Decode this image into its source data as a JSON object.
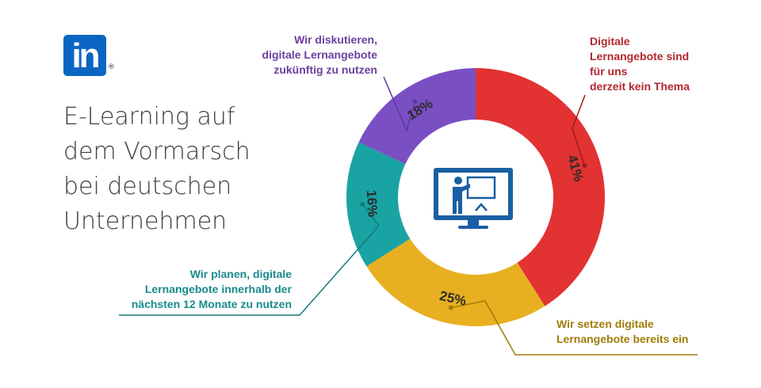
{
  "brand": {
    "logo_text": "in",
    "registered_mark": "®",
    "logo_color": "#0a66c2"
  },
  "title_lines": [
    "E-Learning auf",
    "dem Vormarsch",
    "bei deutschen",
    "Unternehmen"
  ],
  "annotations": {
    "purple": [
      "Wir diskutieren,",
      "digitale Lernangebote",
      "zukünftig zu nutzen"
    ],
    "red": [
      "Digitale",
      "Lernangebote sind",
      "für uns",
      "derzeit kein Thema"
    ],
    "teal": [
      "Wir planen, digitale",
      "Lernangebote innerhalb der",
      "nächsten 12 Monate zu nutzen"
    ],
    "yellow": [
      "Wir setzen digitale",
      "Lernangebote bereits ein"
    ]
  },
  "center_icon": "presentation-monitor-icon",
  "chart_data": {
    "type": "pie",
    "donut": true,
    "title": "E-Learning auf dem Vormarsch bei deutschen Unternehmen",
    "slices": [
      {
        "label": "Digitale Lernangebote sind für uns derzeit kein Thema",
        "value": 41,
        "display": "41%",
        "color": "#e23232"
      },
      {
        "label": "Wir setzen digitale Lernangebote bereits ein",
        "value": 25,
        "display": "25%",
        "color": "#e8b020"
      },
      {
        "label": "Wir planen, digitale Lernangebote innerhalb der nächsten 12 Monate zu nutzen",
        "value": 16,
        "display": "16%",
        "color": "#1aa3a3"
      },
      {
        "label": "Wir diskutieren, digitale Lernangebote zukünftig zu nutzen",
        "value": 18,
        "display": "18%",
        "color": "#7b4fc4"
      }
    ],
    "start": "12 o'clock",
    "direction": "clockwise",
    "label_color": "#2b2b2b"
  }
}
